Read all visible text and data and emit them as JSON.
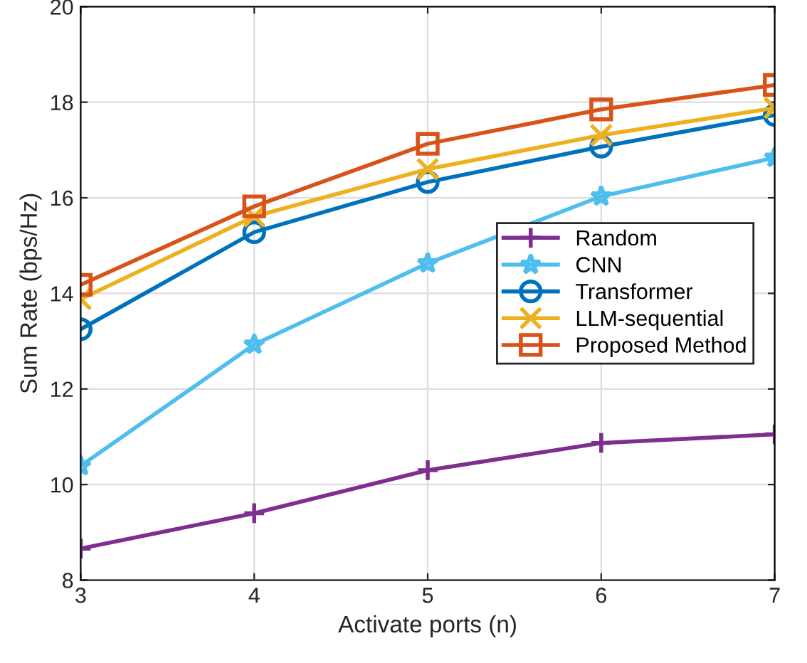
{
  "chart_data": {
    "type": "line",
    "xlabel": "Activate ports (n)",
    "ylabel": "Sum Rate (bps/Hz)",
    "x": [
      3,
      4,
      5,
      6,
      7
    ],
    "xlim": [
      3,
      7
    ],
    "xticks": [
      3,
      4,
      5,
      6,
      7
    ],
    "ylim": [
      8,
      20
    ],
    "yticks": [
      8,
      10,
      12,
      14,
      16,
      18,
      20
    ],
    "grid": true,
    "legend": "right",
    "line_style": "solid",
    "series": [
      {
        "name": "Random",
        "color": "#7e2f8e",
        "marker": "cross",
        "values": [
          8.66,
          9.4,
          10.3,
          10.87,
          11.05
        ]
      },
      {
        "name": "CNN",
        "color": "#4dbeee",
        "marker": "star",
        "values": [
          10.39,
          12.93,
          14.63,
          16.03,
          16.84
        ]
      },
      {
        "name": "Transformer",
        "color": "#0072bd",
        "marker": "circle",
        "values": [
          13.25,
          15.28,
          16.33,
          17.07,
          17.73
        ]
      },
      {
        "name": "LLM-sequential",
        "color": "#edb120",
        "marker": "x",
        "values": [
          13.88,
          15.61,
          16.6,
          17.31,
          17.88
        ]
      },
      {
        "name": "Proposed Method",
        "color": "#d95319",
        "marker": "square",
        "values": [
          14.18,
          15.82,
          17.13,
          17.85,
          18.36
        ]
      }
    ]
  }
}
